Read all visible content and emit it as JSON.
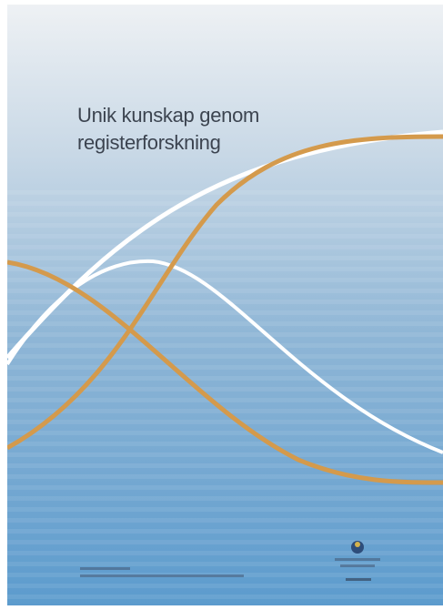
{
  "cover": {
    "title": [
      "Unik kunskap genom",
      "registerforskning"
    ]
  }
}
